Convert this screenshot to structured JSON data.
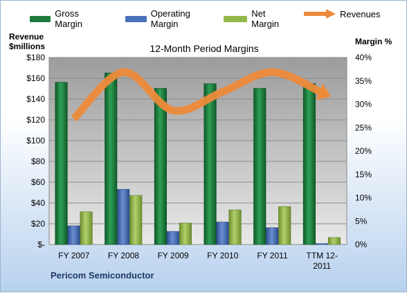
{
  "legend": {
    "gross": "Gross Margin",
    "operating": "Operating Margin",
    "net": "Net Margin",
    "revenues": "Revenues"
  },
  "axes": {
    "left_title_line1": "Revenue",
    "left_title_line2": "$millions",
    "right_title": "Margin %"
  },
  "company": "Pericom Semiconductor",
  "colors": {
    "gross": "#1e7a3e",
    "operating": "#4a70b8",
    "net": "#93b84a",
    "revenues": "#ed8a3a",
    "plot_bg": "#c9c9c9"
  },
  "chart_data": {
    "type": "bar",
    "title": "12-Month Period Margins",
    "categories": [
      "FY 2007",
      "FY 2008",
      "FY 2009",
      "FY 2010",
      "FY 2011",
      "TTM 12-2011"
    ],
    "category_label_lines": [
      [
        "FY 2007"
      ],
      [
        "FY 2008"
      ],
      [
        "FY 2009"
      ],
      [
        "FY 2010"
      ],
      [
        "FY 2011"
      ],
      [
        "TTM 12-",
        "2011"
      ]
    ],
    "left_axis": {
      "label": "Revenue $millions",
      "min": 0,
      "max": 180,
      "step": 20,
      "tick_labels": [
        "$-",
        "$20",
        "$40",
        "$60",
        "$80",
        "$100",
        "$120",
        "$140",
        "$160",
        "$180"
      ]
    },
    "right_axis": {
      "label": "Margin %",
      "min": 0,
      "max": 40,
      "step": 5,
      "tick_labels": [
        "0%",
        "5%",
        "10%",
        "15%",
        "20%",
        "25%",
        "30%",
        "35%",
        "40%"
      ]
    },
    "series": [
      {
        "name": "Gross Margin",
        "axis": "right",
        "kind": "bar",
        "values": [
          34.7,
          36.7,
          33.4,
          34.4,
          33.4,
          34.4
        ]
      },
      {
        "name": "Operating Margin",
        "axis": "right",
        "kind": "bar",
        "values": [
          4.0,
          11.8,
          2.8,
          4.8,
          3.6,
          0.2
        ]
      },
      {
        "name": "Net Margin",
        "axis": "right",
        "kind": "bar",
        "values": [
          7.0,
          10.5,
          4.6,
          7.4,
          8.1,
          1.5
        ]
      },
      {
        "name": "Revenues",
        "axis": "left",
        "kind": "line",
        "values": [
          121,
          166,
          129,
          147,
          166,
          146
        ]
      }
    ],
    "grid": true,
    "legend_position": "top"
  }
}
